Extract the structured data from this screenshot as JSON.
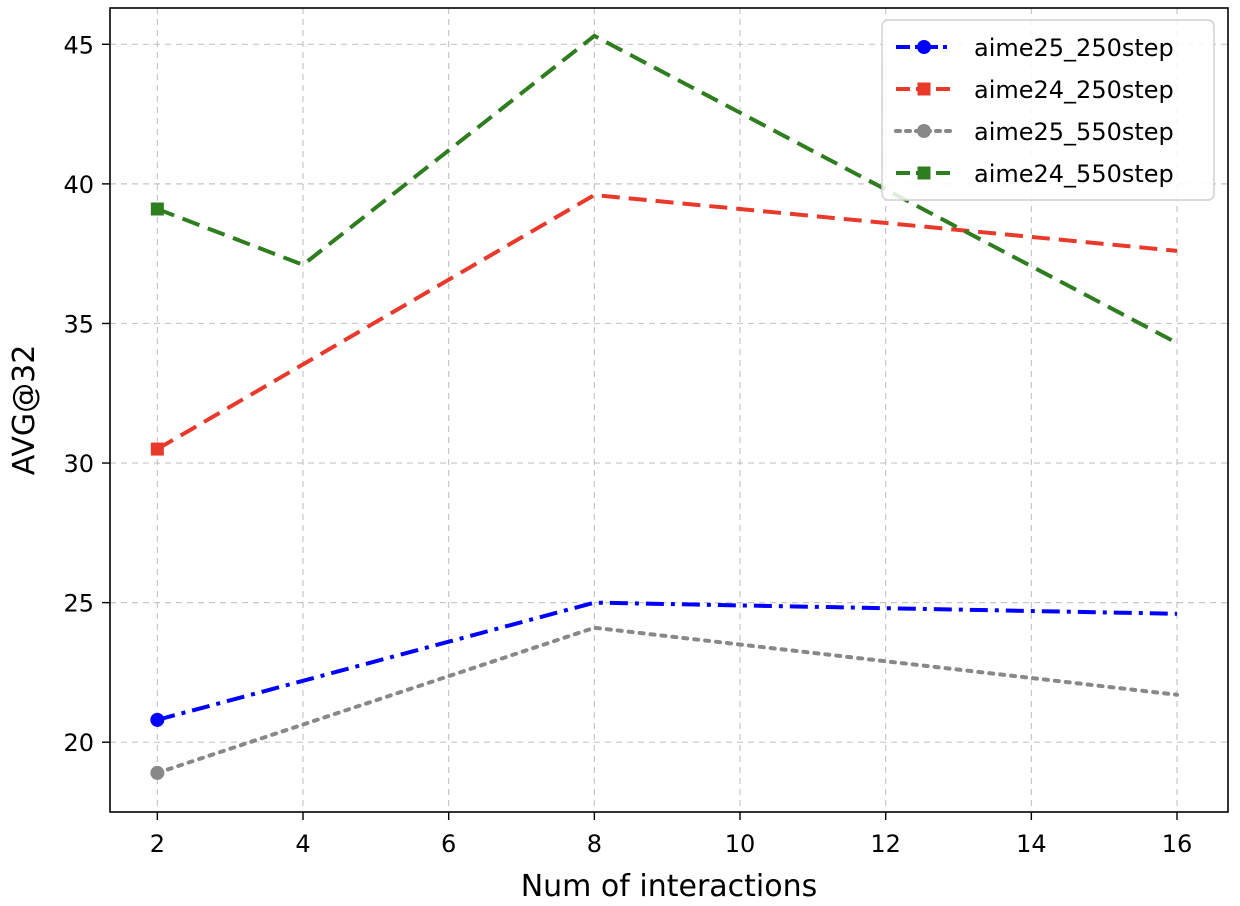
{
  "chart_data": {
    "type": "line",
    "title": "",
    "xlabel": "Num of interactions",
    "ylabel": "AVG@32",
    "x": [
      2,
      8,
      16
    ],
    "xlim": [
      1.35,
      16.7
    ],
    "ylim": [
      17.5,
      46.3
    ],
    "xticks": [
      2,
      4,
      6,
      8,
      10,
      12,
      14,
      16
    ],
    "yticks": [
      20,
      25,
      30,
      35,
      40,
      45
    ],
    "grid": true,
    "legend_position": "top-right",
    "series": [
      {
        "name": "aime25_250step",
        "color": "#0000ff",
        "dash": "dashdot",
        "marker": "circle",
        "x": [
          2,
          8,
          16
        ],
        "values": [
          20.8,
          25.0,
          24.6
        ]
      },
      {
        "name": "aime24_250step",
        "color": "#e8392a",
        "dash": "dashed",
        "marker": "square",
        "x": [
          2,
          8,
          16
        ],
        "values": [
          30.5,
          39.6,
          37.6
        ]
      },
      {
        "name": "aime25_550step",
        "color": "#888888",
        "dash": "dotted",
        "marker": "circle",
        "x": [
          2,
          8,
          16
        ],
        "values": [
          18.9,
          24.1,
          21.7
        ]
      },
      {
        "name": "aime24_550step",
        "color": "#2e7d1e",
        "dash": "dashed",
        "marker": "square",
        "x": [
          2,
          4,
          8,
          16
        ],
        "values": [
          39.1,
          37.1,
          45.3,
          34.3
        ]
      }
    ]
  }
}
